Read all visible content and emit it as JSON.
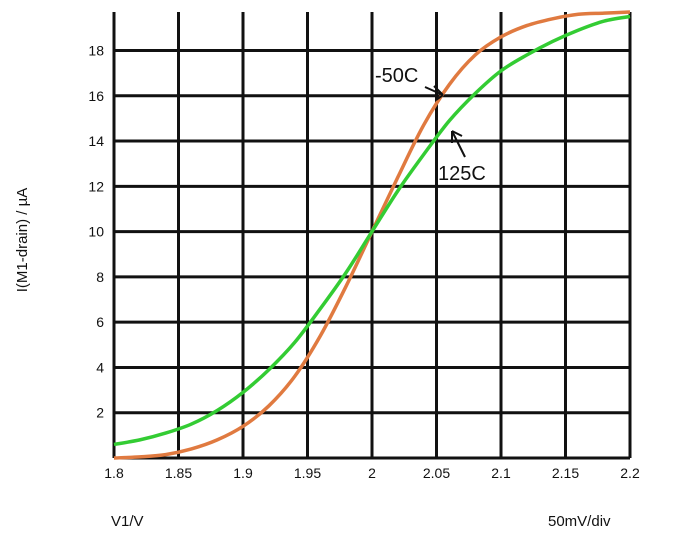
{
  "chart_data": {
    "type": "line",
    "title": "",
    "xlabel": "V1/V",
    "ylabel": "I(M1-drain) / µA",
    "x_scale_label": "50mV/div",
    "xlim": [
      1.8,
      2.2
    ],
    "ylim": [
      0,
      19.7
    ],
    "x_ticks": [
      "1.8",
      "1.85",
      "1.9",
      "1.95",
      "2",
      "2.05",
      "2.1",
      "2.15",
      "2.2"
    ],
    "y_ticks": [
      "2",
      "4",
      "6",
      "8",
      "10",
      "12",
      "14",
      "16",
      "18"
    ],
    "grid": true,
    "series": [
      {
        "name": "-50C",
        "color": "#e07a40",
        "x": [
          1.8,
          1.82,
          1.84,
          1.86,
          1.88,
          1.9,
          1.92,
          1.94,
          1.96,
          1.98,
          2.0,
          2.02,
          2.04,
          2.06,
          2.08,
          2.1,
          2.12,
          2.14,
          2.16,
          2.18,
          2.2
        ],
        "y": [
          0.0,
          0.05,
          0.15,
          0.4,
          0.8,
          1.4,
          2.3,
          3.6,
          5.4,
          7.6,
          10.0,
          12.4,
          14.7,
          16.5,
          17.8,
          18.6,
          19.1,
          19.4,
          19.6,
          19.65,
          19.7
        ]
      },
      {
        "name": "125C",
        "color": "#33cc33",
        "x": [
          1.8,
          1.82,
          1.84,
          1.86,
          1.88,
          1.9,
          1.92,
          1.94,
          1.96,
          1.98,
          2.0,
          2.02,
          2.04,
          2.06,
          2.08,
          2.1,
          2.12,
          2.14,
          2.16,
          2.18,
          2.2
        ],
        "y": [
          0.6,
          0.8,
          1.1,
          1.5,
          2.1,
          2.9,
          3.9,
          5.1,
          6.6,
          8.2,
          10.0,
          11.8,
          13.4,
          14.9,
          16.1,
          17.1,
          17.8,
          18.4,
          18.9,
          19.3,
          19.5
        ]
      }
    ],
    "annotations": [
      "-50C",
      "125C"
    ]
  }
}
